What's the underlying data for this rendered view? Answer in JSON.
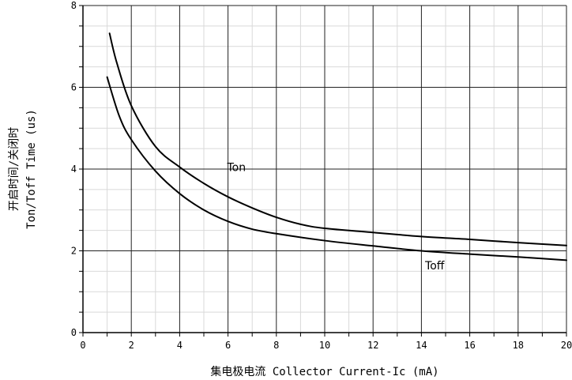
{
  "chart_data": {
    "type": "line",
    "xlabel": "集电极电流 Collector Current-Ic (mA)",
    "ylabel_cn": "开启时间/关闭时",
    "ylabel_en": "Ton/Toff Time (us)",
    "xlim": [
      0,
      20
    ],
    "ylim": [
      0,
      8
    ],
    "x_ticks": [
      0,
      2,
      4,
      6,
      8,
      10,
      12,
      14,
      16,
      18,
      20
    ],
    "y_ticks": [
      0,
      2,
      4,
      6,
      8
    ],
    "grid": true,
    "series": [
      {
        "name": "Ton",
        "x": [
          1.1,
          1.4,
          2.0,
          3.0,
          4.0,
          5.0,
          6.0,
          7.0,
          8.0,
          9.0,
          10.0,
          12.0,
          14.0,
          16.0,
          18.0,
          20.0
        ],
        "y": [
          7.32,
          6.6,
          5.55,
          4.55,
          4.05,
          3.65,
          3.32,
          3.05,
          2.82,
          2.65,
          2.55,
          2.45,
          2.35,
          2.28,
          2.2,
          2.13
        ]
      },
      {
        "name": "Toff",
        "x": [
          1.0,
          1.5,
          2.0,
          3.0,
          4.0,
          5.0,
          6.0,
          7.0,
          8.0,
          10.0,
          12.0,
          14.0,
          16.0,
          18.0,
          20.0
        ],
        "y": [
          6.25,
          5.3,
          4.72,
          3.95,
          3.4,
          3.0,
          2.72,
          2.53,
          2.42,
          2.25,
          2.12,
          2.0,
          1.92,
          1.85,
          1.77
        ]
      }
    ],
    "annotations": [
      {
        "text": "Ton",
        "x": 6.35,
        "y": 3.95
      },
      {
        "text": "Toff",
        "x": 14.55,
        "y": 1.55
      }
    ]
  }
}
